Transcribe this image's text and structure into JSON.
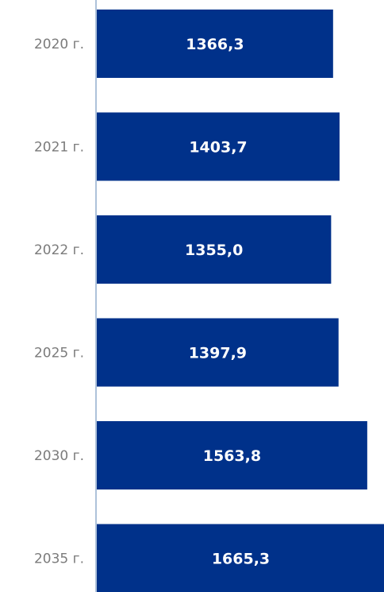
{
  "chart_data": {
    "type": "bar",
    "orientation": "horizontal",
    "categories": [
      "2020 г.",
      "2021 г.",
      "2022 г.",
      "2025 г.",
      "2030 г.",
      "2035 г."
    ],
    "values": [
      1366.3,
      1403.7,
      1355.0,
      1397.9,
      1563.8,
      1665.3
    ],
    "value_labels": [
      "1366,3",
      "1403,7",
      "1355,0",
      "1397,9",
      "1563,8",
      "1665,3"
    ],
    "bar_color": "#00318a",
    "label_color": "#ffffff",
    "tick_color": "#7b7b7b",
    "axis_color": "#5d84b5",
    "grid": false,
    "legend": "none"
  }
}
